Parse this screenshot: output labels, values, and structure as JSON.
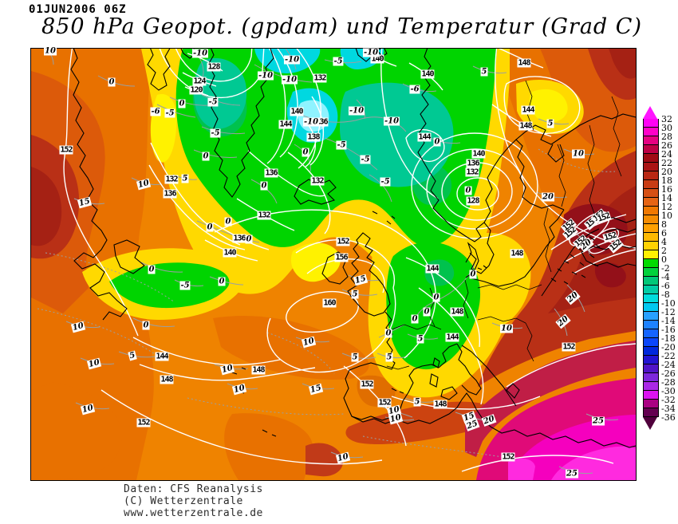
{
  "header": {
    "datetime": "01JUN2006 06Z",
    "title": "850 hPa Geopot. (gpdam) und  Temperatur (Grad C)"
  },
  "credits": {
    "line1": "Daten: CFS Reanalysis",
    "line2": "(C) Wetterzentrale",
    "line3": "www.wetterzentrale.de"
  },
  "colorbar": {
    "tick_values": [
      32,
      30,
      28,
      26,
      24,
      22,
      20,
      18,
      16,
      14,
      12,
      10,
      8,
      6,
      4,
      2,
      0,
      -2,
      -4,
      -6,
      -8,
      -10,
      -12,
      -14,
      -16,
      -18,
      -20,
      -22,
      -24,
      -26,
      -28,
      -30,
      -32,
      -34,
      -36
    ],
    "cell_colors": [
      "#FF00F5",
      "#FF00C8",
      "#E60082",
      "#BE0046",
      "#A00A14",
      "#AA1414",
      "#B92814",
      "#C83C14",
      "#D75014",
      "#E66414",
      "#F07800",
      "#F58C00",
      "#FFA000",
      "#FFB900",
      "#FFD200",
      "#FFF000",
      "#00DC00",
      "#00D23C",
      "#00C878",
      "#00CDA5",
      "#00DCDC",
      "#00C8F0",
      "#28A0FF",
      "#1E82FF",
      "#1464FF",
      "#0A46FA",
      "#0028DC",
      "#2314D2",
      "#5014C8",
      "#7D28DC",
      "#AA28E6",
      "#DC14F0",
      "#AA0082",
      "#640050"
    ],
    "arrow_top_color": "#FF14FF",
    "arrow_bottom_color": "#50003C"
  },
  "chart_data": {
    "type": "heatmap",
    "title": "850 hPa Geopot. (gpdam) und Temperatur (Grad C)",
    "valid_time": "01JUN2006 06Z",
    "region": "North Atlantic / Europe",
    "temperature_scale_c": {
      "min": -36,
      "max": 32,
      "step": 2
    },
    "geopotential_contour_values_gpdam": [
      120,
      124,
      128,
      132,
      136,
      138,
      140,
      144,
      148,
      152,
      156,
      160
    ],
    "temperature_contour_values_c": [
      -10,
      -6,
      -5,
      0,
      5,
      10,
      15,
      20,
      25
    ],
    "features": [
      "High 160 gpdam west of Ireland",
      "Low 120 gpdam near Baffin Bay",
      "Low 128 gpdam over Gulf of Bothnia",
      "Cold pool -10C Greenland / Norwegian Sea",
      "Cold -5C trough mid-Atlantic and 0C patch over France/Germany",
      "Very warm >25C North Africa / Middle East",
      "Warm 20C SE Europe / Turkey"
    ]
  },
  "map": {
    "contour_labels": [
      [
        "152",
        "g",
        44,
        127,
        0
      ],
      [
        "128",
        "g",
        229,
        23,
        0
      ],
      [
        "124",
        "g",
        211,
        41,
        0
      ],
      [
        "120",
        "g",
        207,
        52,
        0
      ],
      [
        "132",
        "g",
        362,
        37,
        0
      ],
      [
        "140",
        "g",
        333,
        79,
        0
      ],
      [
        "144",
        "g",
        319,
        95,
        0
      ],
      [
        "136",
        "g",
        364,
        92,
        0
      ],
      [
        "138",
        "g",
        354,
        111,
        0
      ],
      [
        "132",
        "g",
        359,
        166,
        0
      ],
      [
        "136",
        "g",
        301,
        156,
        0
      ],
      [
        "132",
        "g",
        176,
        164,
        0
      ],
      [
        "136",
        "g",
        174,
        182,
        0
      ],
      [
        "132",
        "g",
        292,
        209,
        0
      ],
      [
        "136",
        "g",
        261,
        238,
        0
      ],
      [
        "140",
        "g",
        249,
        256,
        0
      ],
      [
        "140",
        "g",
        434,
        13,
        0
      ],
      [
        "140",
        "g",
        497,
        32,
        0
      ],
      [
        "148",
        "g",
        618,
        18,
        0
      ],
      [
        "144",
        "g",
        623,
        77,
        0
      ],
      [
        "148",
        "g",
        620,
        97,
        0
      ],
      [
        "144",
        "g",
        493,
        111,
        0
      ],
      [
        "140",
        "g",
        561,
        132,
        0
      ],
      [
        "136",
        "g",
        554,
        144,
        0
      ],
      [
        "132",
        "g",
        553,
        155,
        0
      ],
      [
        "128",
        "g",
        554,
        191,
        0
      ],
      [
        "152",
        "g",
        391,
        242,
        0
      ],
      [
        "156",
        "g",
        389,
        262,
        0
      ],
      [
        "160",
        "g",
        374,
        319,
        0
      ],
      [
        "144",
        "g",
        164,
        386,
        0
      ],
      [
        "148",
        "g",
        170,
        415,
        0
      ],
      [
        "148",
        "g",
        285,
        403,
        0
      ],
      [
        "152",
        "g",
        141,
        469,
        0
      ],
      [
        "144",
        "g",
        503,
        276,
        0
      ],
      [
        "148",
        "g",
        534,
        330,
        0
      ],
      [
        "144",
        "g",
        528,
        362,
        0
      ],
      [
        "148",
        "g",
        609,
        257,
        0
      ],
      [
        "152",
        "g",
        421,
        421,
        0
      ],
      [
        "152",
        "g",
        443,
        444,
        0
      ],
      [
        "148",
        "g",
        513,
        446,
        0
      ],
      [
        "152",
        "g",
        674,
        374,
        0
      ],
      [
        "152",
        "g",
        598,
        512,
        0
      ],
      [
        "152",
        "g",
        674,
        222,
        -40
      ],
      [
        "152",
        "g",
        676,
        231,
        -40
      ],
      [
        "152",
        "g",
        703,
        218,
        -40
      ],
      [
        "152",
        "g",
        712,
        210,
        -40
      ],
      [
        "152",
        "g",
        718,
        212,
        -20
      ],
      [
        "152",
        "g",
        689,
        242,
        -40
      ],
      [
        "152",
        "g",
        726,
        236,
        -15
      ],
      [
        "152",
        "g",
        733,
        247,
        -40
      ],
      [
        "10",
        "t",
        24,
        3,
        0
      ],
      [
        "0",
        "t",
        101,
        42,
        0
      ],
      [
        "-10",
        "t",
        212,
        6,
        0
      ],
      [
        "0",
        "t",
        189,
        69,
        0
      ],
      [
        "-6",
        "t",
        156,
        79,
        0
      ],
      [
        "-5",
        "t",
        174,
        81,
        0
      ],
      [
        "-5",
        "t",
        228,
        67,
        0
      ],
      [
        "-5",
        "t",
        231,
        106,
        0
      ],
      [
        "-10",
        "t",
        294,
        34,
        0
      ],
      [
        "-10",
        "t",
        324,
        39,
        0
      ],
      [
        "-10",
        "t",
        327,
        14,
        0
      ],
      [
        "-10",
        "t",
        351,
        92,
        0
      ],
      [
        "-10",
        "t",
        408,
        78,
        0
      ],
      [
        "-10",
        "t",
        452,
        91,
        0
      ],
      [
        "-5",
        "t",
        389,
        121,
        0
      ],
      [
        "-5",
        "t",
        419,
        139,
        0
      ],
      [
        "-5",
        "t",
        444,
        167,
        0
      ],
      [
        "0",
        "t",
        344,
        130,
        0
      ],
      [
        "-5",
        "t",
        385,
        16,
        0
      ],
      [
        "-10",
        "t",
        426,
        5,
        0
      ],
      [
        "-6",
        "t",
        481,
        51,
        0
      ],
      [
        "5",
        "t",
        568,
        29,
        0
      ],
      [
        "5",
        "t",
        651,
        94,
        0
      ],
      [
        "0",
        "t",
        509,
        117,
        0
      ],
      [
        "10",
        "t",
        686,
        132,
        0
      ],
      [
        "20",
        "t",
        648,
        186,
        0
      ],
      [
        "20",
        "t",
        696,
        246,
        -40
      ],
      [
        "5",
        "t",
        193,
        163,
        0
      ],
      [
        "10",
        "t",
        141,
        170,
        -15
      ],
      [
        "15",
        "t",
        67,
        193,
        -15
      ],
      [
        "0",
        "t",
        219,
        135,
        0
      ],
      [
        "0",
        "t",
        292,
        172,
        0
      ],
      [
        "0",
        "t",
        224,
        224,
        0
      ],
      [
        "0",
        "t",
        247,
        217,
        0
      ],
      [
        "0",
        "t",
        273,
        239,
        0
      ],
      [
        "0",
        "t",
        151,
        277,
        0
      ],
      [
        "-5",
        "t",
        193,
        297,
        0
      ],
      [
        "0",
        "t",
        239,
        292,
        0
      ],
      [
        "0",
        "t",
        144,
        347,
        0
      ],
      [
        "10",
        "t",
        59,
        349,
        -15
      ],
      [
        "10",
        "t",
        79,
        395,
        -15
      ],
      [
        "5",
        "t",
        127,
        385,
        -15
      ],
      [
        "10",
        "t",
        246,
        402,
        -15
      ],
      [
        "10",
        "t",
        261,
        427,
        -15
      ],
      [
        "10",
        "t",
        71,
        452,
        -15
      ],
      [
        "10",
        "t",
        348,
        368,
        -15
      ],
      [
        "15",
        "t",
        357,
        427,
        -15
      ],
      [
        "15",
        "t",
        413,
        290,
        -15
      ],
      [
        "5",
        "t",
        406,
        308,
        0
      ],
      [
        "5",
        "t",
        488,
        364,
        0
      ],
      [
        "0",
        "t",
        481,
        339,
        0
      ],
      [
        "0",
        "t",
        554,
        283,
        0
      ],
      [
        "0",
        "t",
        508,
        312,
        0
      ],
      [
        "0",
        "t",
        496,
        330,
        0
      ],
      [
        "0",
        "t",
        448,
        357,
        0
      ],
      [
        "5",
        "t",
        406,
        387,
        0
      ],
      [
        "5",
        "t",
        449,
        387,
        0
      ],
      [
        "5",
        "t",
        484,
        443,
        0
      ],
      [
        "10",
        "t",
        455,
        454,
        -15
      ],
      [
        "10",
        "t",
        457,
        464,
        -15
      ],
      [
        "15",
        "t",
        549,
        462,
        -20
      ],
      [
        "25",
        "t",
        553,
        472,
        -20
      ],
      [
        "20",
        "t",
        574,
        466,
        -20
      ],
      [
        "25",
        "t",
        711,
        467,
        0
      ],
      [
        "25",
        "t",
        678,
        533,
        0
      ],
      [
        "10",
        "t",
        596,
        351,
        0
      ],
      [
        "20",
        "t",
        667,
        342,
        -40
      ],
      [
        "20",
        "t",
        679,
        312,
        -40
      ],
      [
        "10",
        "t",
        391,
        513,
        -15
      ],
      [
        "0",
        "t",
        548,
        178,
        0
      ]
    ]
  }
}
